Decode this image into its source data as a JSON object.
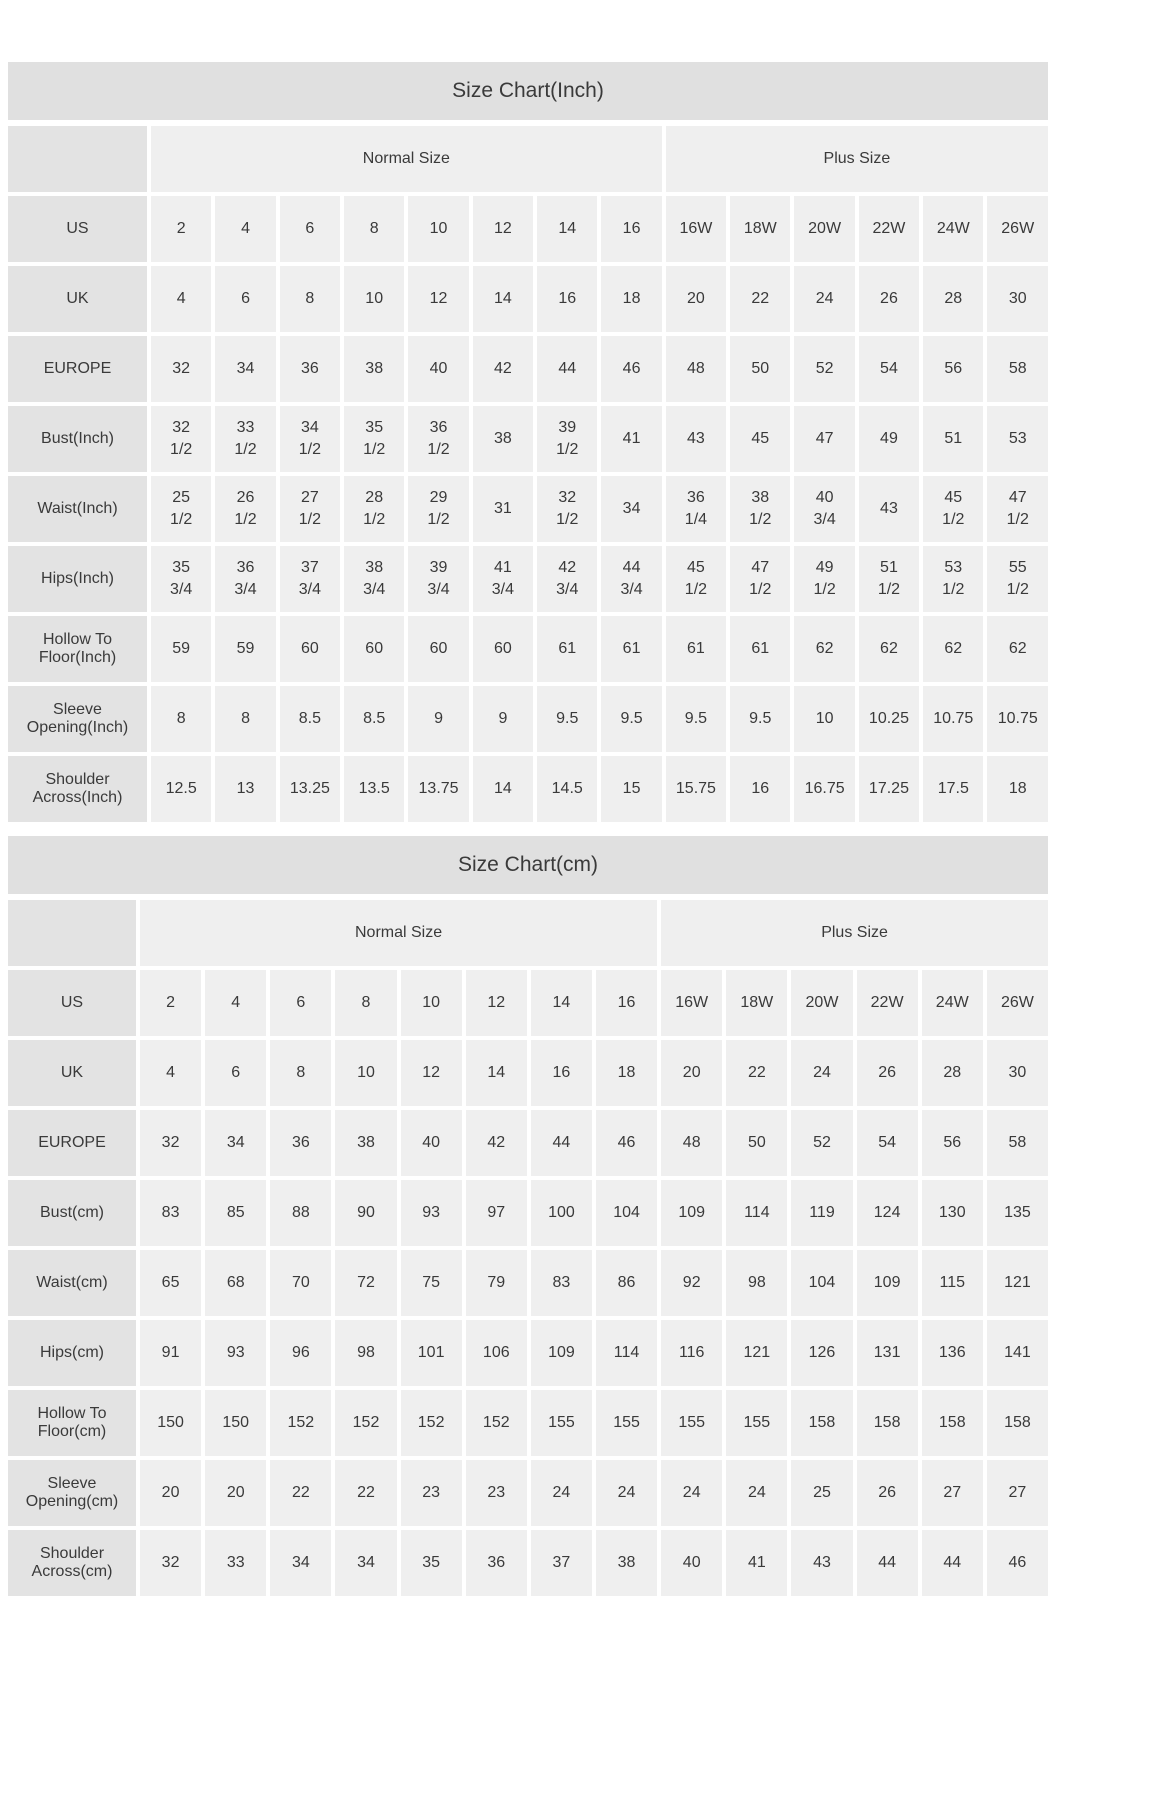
{
  "colors": {
    "page_bg": "#ffffff",
    "title_bar_bg": "#e0e0e0",
    "label_cell_bg": "#e3e3e3",
    "data_cell_bg": "#efefef",
    "text": "#3a3a3a"
  },
  "tables": [
    {
      "title": "Size Chart(Inch)",
      "group_header": {
        "corner": "",
        "groups": [
          {
            "label": "Normal Size",
            "span": 8
          },
          {
            "label": "Plus Size",
            "span": 6
          }
        ]
      },
      "rows": [
        {
          "label": "US",
          "values": [
            "2",
            "4",
            "6",
            "8",
            "10",
            "12",
            "14",
            "16",
            "16W",
            "18W",
            "20W",
            "22W",
            "24W",
            "26W"
          ]
        },
        {
          "label": "UK",
          "values": [
            "4",
            "6",
            "8",
            "10",
            "12",
            "14",
            "16",
            "18",
            "20",
            "22",
            "24",
            "26",
            "28",
            "30"
          ]
        },
        {
          "label": "EUROPE",
          "values": [
            "32",
            "34",
            "36",
            "38",
            "40",
            "42",
            "44",
            "46",
            "48",
            "50",
            "52",
            "54",
            "56",
            "58"
          ]
        },
        {
          "label": "Bust(Inch)",
          "values": [
            "32\n1/2",
            "33\n1/2",
            "34\n1/2",
            "35\n1/2",
            "36\n1/2",
            "38",
            "39\n1/2",
            "41",
            "43",
            "45",
            "47",
            "49",
            "51",
            "53"
          ]
        },
        {
          "label": "Waist(Inch)",
          "values": [
            "25\n1/2",
            "26\n1/2",
            "27\n1/2",
            "28\n1/2",
            "29\n1/2",
            "31",
            "32\n1/2",
            "34",
            "36\n1/4",
            "38\n1/2",
            "40\n3/4",
            "43",
            "45\n1/2",
            "47\n1/2"
          ]
        },
        {
          "label": "Hips(Inch)",
          "values": [
            "35\n3/4",
            "36\n3/4",
            "37\n3/4",
            "38\n3/4",
            "39\n3/4",
            "41\n3/4",
            "42\n3/4",
            "44\n3/4",
            "45\n1/2",
            "47\n1/2",
            "49\n1/2",
            "51\n1/2",
            "53\n1/2",
            "55\n1/2"
          ]
        },
        {
          "label": "Hollow To Floor(Inch)",
          "values": [
            "59",
            "59",
            "60",
            "60",
            "60",
            "60",
            "61",
            "61",
            "61",
            "61",
            "62",
            "62",
            "62",
            "62"
          ]
        },
        {
          "label": "Sleeve Opening(Inch)",
          "values": [
            "8",
            "8",
            "8.5",
            "8.5",
            "9",
            "9",
            "9.5",
            "9.5",
            "9.5",
            "9.5",
            "10",
            "10.25",
            "10.75",
            "10.75"
          ]
        },
        {
          "label": "Shoulder Across(Inch)",
          "values": [
            "12.5",
            "13",
            "13.25",
            "13.5",
            "13.75",
            "14",
            "14.5",
            "15",
            "15.75",
            "16",
            "16.75",
            "17.25",
            "17.5",
            "18"
          ]
        }
      ]
    },
    {
      "title": "Size Chart(cm)",
      "group_header": {
        "corner": "",
        "groups": [
          {
            "label": "Normal Size",
            "span": 8
          },
          {
            "label": "Plus Size",
            "span": 6
          }
        ]
      },
      "rows": [
        {
          "label": "US",
          "values": [
            "2",
            "4",
            "6",
            "8",
            "10",
            "12",
            "14",
            "16",
            "16W",
            "18W",
            "20W",
            "22W",
            "24W",
            "26W"
          ]
        },
        {
          "label": "UK",
          "values": [
            "4",
            "6",
            "8",
            "10",
            "12",
            "14",
            "16",
            "18",
            "20",
            "22",
            "24",
            "26",
            "28",
            "30"
          ]
        },
        {
          "label": "EUROPE",
          "values": [
            "32",
            "34",
            "36",
            "38",
            "40",
            "42",
            "44",
            "46",
            "48",
            "50",
            "52",
            "54",
            "56",
            "58"
          ]
        },
        {
          "label": "Bust(cm)",
          "values": [
            "83",
            "85",
            "88",
            "90",
            "93",
            "97",
            "100",
            "104",
            "109",
            "114",
            "119",
            "124",
            "130",
            "135"
          ]
        },
        {
          "label": "Waist(cm)",
          "values": [
            "65",
            "68",
            "70",
            "72",
            "75",
            "79",
            "83",
            "86",
            "92",
            "98",
            "104",
            "109",
            "115",
            "121"
          ]
        },
        {
          "label": "Hips(cm)",
          "values": [
            "91",
            "93",
            "96",
            "98",
            "101",
            "106",
            "109",
            "114",
            "116",
            "121",
            "126",
            "131",
            "136",
            "141"
          ]
        },
        {
          "label": "Hollow To Floor(cm)",
          "values": [
            "150",
            "150",
            "152",
            "152",
            "152",
            "152",
            "155",
            "155",
            "155",
            "155",
            "158",
            "158",
            "158",
            "158"
          ]
        },
        {
          "label": "Sleeve Opening(cm)",
          "values": [
            "20",
            "20",
            "22",
            "22",
            "23",
            "23",
            "24",
            "24",
            "24",
            "24",
            "25",
            "26",
            "27",
            "27"
          ]
        },
        {
          "label": "Shoulder Across(cm)",
          "values": [
            "32",
            "33",
            "34",
            "34",
            "35",
            "36",
            "37",
            "38",
            "40",
            "41",
            "43",
            "44",
            "44",
            "46"
          ]
        }
      ]
    }
  ]
}
